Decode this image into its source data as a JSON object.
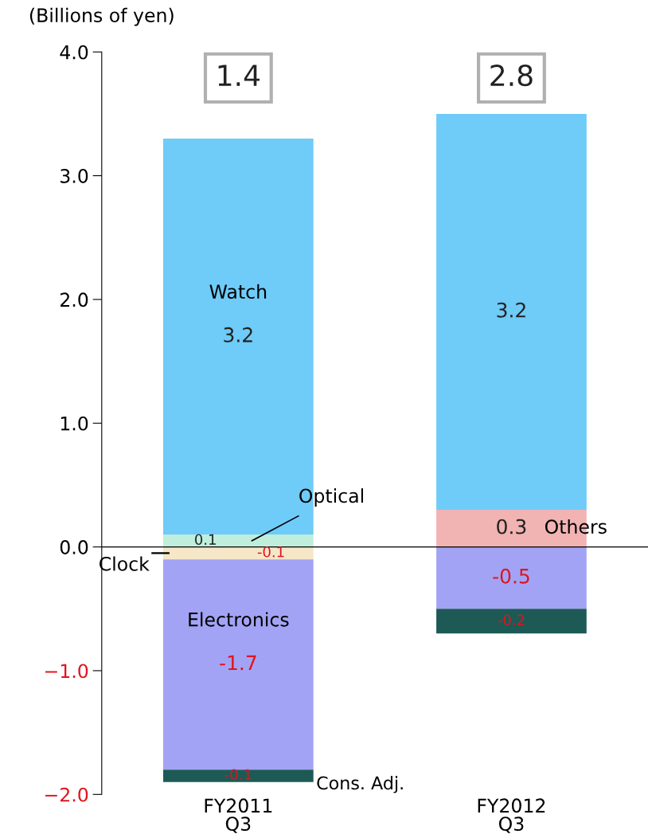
{
  "chart_data": {
    "type": "bar",
    "stacked": true,
    "ylabel": "(Billions of yen)",
    "categories": [
      "FY2011\nQ3",
      "FY2012\nQ3"
    ],
    "series": [
      {
        "name": "Optical",
        "color": "#bfeedd",
        "values": [
          0.1,
          null
        ]
      },
      {
        "name": "Others",
        "color": "#f2b3b3",
        "values": [
          null,
          0.3
        ]
      },
      {
        "name": "Watch",
        "color": "#6fcbf8",
        "values": [
          3.2,
          3.2
        ]
      },
      {
        "name": "Clock",
        "color": "#f6e7c8",
        "values": [
          -0.1,
          null
        ]
      },
      {
        "name": "Electronics",
        "color": "#a3a3f5",
        "values": [
          -1.7,
          -0.5
        ]
      },
      {
        "name": "Cons. Adj.",
        "color": "#1d5a55",
        "values": [
          -0.1,
          -0.2
        ]
      }
    ],
    "data_labels": true,
    "totals": [
      "1.4",
      "2.8"
    ],
    "ylim": [
      -2,
      4
    ],
    "yticks": [
      {
        "value": -2,
        "label": "−2.0"
      },
      {
        "value": -1,
        "label": "−1.0"
      },
      {
        "value": 0,
        "label": "0.0"
      },
      {
        "value": 1,
        "label": "1.0"
      },
      {
        "value": 2,
        "label": "2.0"
      },
      {
        "value": 3,
        "label": "3.0"
      },
      {
        "value": 4,
        "label": "4.0"
      }
    ]
  }
}
